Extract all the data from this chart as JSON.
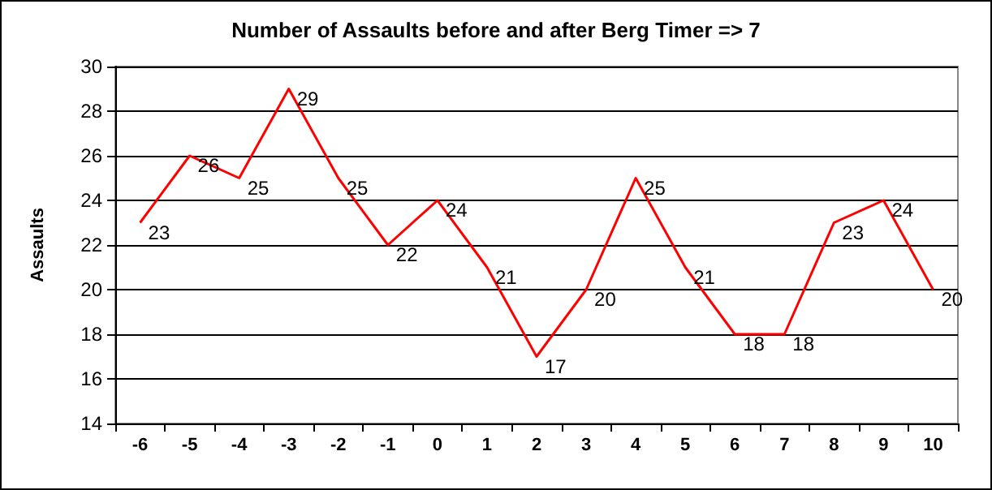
{
  "chart_data": {
    "type": "line",
    "title": "Number of Assaults before and after Berg Timer => 7",
    "ylabel": "Assaults",
    "categories": [
      "-6",
      "-5",
      "-4",
      "-3",
      "-2",
      "-1",
      "0",
      "1",
      "2",
      "3",
      "4",
      "5",
      "6",
      "7",
      "8",
      "9",
      "10"
    ],
    "values": [
      23,
      26,
      25,
      29,
      25,
      22,
      24,
      21,
      17,
      20,
      25,
      21,
      18,
      18,
      23,
      24,
      20
    ],
    "color": "#ff0000",
    "ylim": [
      14,
      30
    ],
    "yticks": [
      14,
      16,
      18,
      20,
      22,
      24,
      26,
      28,
      30
    ],
    "grid": "y",
    "data_labels": true,
    "marker": "none",
    "line_style": "solid"
  }
}
